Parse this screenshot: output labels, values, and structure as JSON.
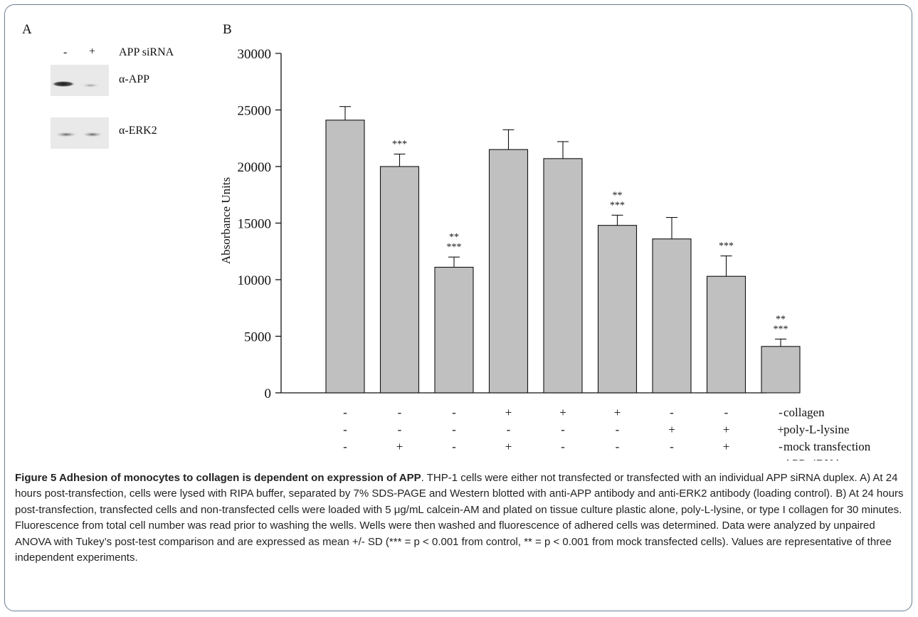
{
  "panel_a": {
    "letter": "A",
    "lane_labels": [
      "-",
      "+"
    ],
    "lane_header": "APP siRNA",
    "blots": [
      {
        "label": "α-APP"
      },
      {
        "label": "α-ERK2"
      }
    ]
  },
  "panel_b": {
    "letter": "B"
  },
  "chart_data": {
    "type": "bar",
    "title": "",
    "xlabel": "",
    "ylabel": "Absorbance Units",
    "ylim": [
      0,
      30000
    ],
    "yticks": [
      0,
      5000,
      10000,
      15000,
      20000,
      25000,
      30000
    ],
    "values": [
      24100,
      20000,
      11100,
      21500,
      20700,
      14800,
      13600,
      10300,
      4100
    ],
    "errors": [
      1200,
      1100,
      900,
      1750,
      1500,
      900,
      1900,
      1800,
      650
    ],
    "annotations": [
      [],
      [
        "***"
      ],
      [
        "**",
        "***"
      ],
      [],
      [],
      [
        "**",
        "***"
      ],
      [],
      [
        "***"
      ],
      [
        "**",
        "***"
      ]
    ],
    "condition_labels": [
      "collagen",
      "poly-L-lysine",
      "mock transfection",
      "APP siRNA"
    ],
    "condition_matrix": [
      [
        "-",
        "-",
        "-",
        "+",
        "+",
        "+",
        "-",
        "-",
        "-"
      ],
      [
        "-",
        "-",
        "-",
        "-",
        "-",
        "-",
        "+",
        "+",
        "+"
      ],
      [
        "-",
        "+",
        "-",
        "+",
        "-",
        "-",
        "-",
        "+",
        "-"
      ],
      [
        "-",
        "-",
        "+",
        "-",
        "-",
        "+",
        "-",
        "-",
        "+"
      ]
    ],
    "bar_color": "#c0c0c0",
    "grid": false,
    "legend": "none"
  },
  "caption": {
    "figure_label": "Figure 5 Adhesion of monocytes to collagen is dependent on expression of APP",
    "text": ". THP-1 cells were either not transfected or transfected with an individual APP siRNA duplex. A) At 24 hours post-transfection, cells were lysed with RIPA buffer, separated by 7% SDS-PAGE and Western blotted with anti-APP antibody and anti-ERK2 antibody (loading control). B) At 24 hours post-transfection, transfected cells and non-transfected cells were loaded with 5 μg/mL calcein-AM and plated on tissue culture plastic alone, poly-L-lysine, or type I collagen for 30 minutes. Fluorescence from total cell number was read prior to washing the wells. Wells were then washed and fluorescence of adhered cells was determined. Data were analyzed by unpaired ANOVA with Tukey’s post-test comparison and are expressed as mean +/- SD (*** = p < 0.001 from control, ** = p < 0.001 from mock transfected cells). Values are representative of three independent experiments."
  }
}
